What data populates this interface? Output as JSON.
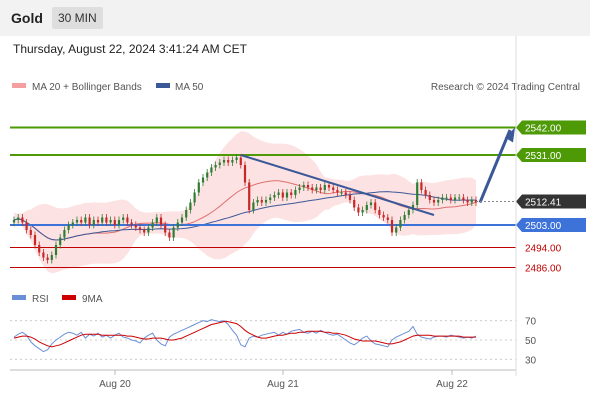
{
  "header": {
    "title": "Gold",
    "timeframe": "30 MIN"
  },
  "timestamp": "Thursday, August 22, 2024 3:41:24 AM CET",
  "legend": {
    "ma20": "MA 20 + Bollinger Bands",
    "ma50": "MA 50",
    "source": "Research © 2024 Trading Central"
  },
  "rsi_legend": {
    "rsi": "RSI",
    "ma9": "9MA"
  },
  "colors": {
    "resistance": "#4e9a06",
    "support": "#3d72d9",
    "target": "#c00000",
    "current": "#333333",
    "ma20": "#e07070",
    "band": "#fbd5d5",
    "ma50": "#3b5998",
    "trend": "#3b5998",
    "up": "#2e7d32",
    "down": "#c62828",
    "rsi": "#6b8fd6",
    "rsi_ma": "#cc0000"
  },
  "chart_data": {
    "type": "candlestick",
    "ylim": [
      2481,
      2553
    ],
    "x_ticks": [
      "Aug 20",
      "Aug 21",
      "Aug 22"
    ],
    "current_price": "2512.41",
    "levels": [
      {
        "label": "2542.00",
        "value": 2542,
        "kind": "resistance"
      },
      {
        "label": "2531.00",
        "value": 2531,
        "kind": "resistance"
      },
      {
        "label": "2503.00",
        "value": 2503,
        "kind": "support"
      },
      {
        "label": "2494.00",
        "value": 2494,
        "kind": "target"
      },
      {
        "label": "2486.00",
        "value": 2486,
        "kind": "target"
      }
    ],
    "close": [
      2505,
      2506,
      2504,
      2501,
      2499,
      2495,
      2492,
      2490,
      2489,
      2491,
      2495,
      2498,
      2501,
      2503,
      2504,
      2505,
      2504,
      2506,
      2503,
      2505,
      2504,
      2506,
      2504,
      2505,
      2503,
      2505,
      2506,
      2504,
      2503,
      2502,
      2501,
      2500,
      2502,
      2504,
      2506,
      2503,
      2500,
      2498,
      2502,
      2504,
      2506,
      2509,
      2512,
      2516,
      2520,
      2522,
      2524,
      2526,
      2527,
      2528,
      2529,
      2528,
      2529,
      2530,
      2527,
      2520,
      2509,
      2512,
      2513,
      2512,
      2513,
      2514,
      2515,
      2516,
      2514,
      2516,
      2515,
      2517,
      2518,
      2519,
      2518,
      2517,
      2518,
      2517,
      2519,
      2518,
      2517,
      2516,
      2516,
      2515,
      2513,
      2510,
      2508,
      2509,
      2511,
      2512,
      2509,
      2507,
      2506,
      2505,
      2500,
      2502,
      2505,
      2507,
      2509,
      2511,
      2520,
      2517,
      2515,
      2513,
      2512,
      2513,
      2514,
      2514,
      2513,
      2514,
      2514,
      2513,
      2512,
      2513,
      2512
    ],
    "rsi": {
      "ticks": [
        70,
        50,
        30
      ],
      "ylim": [
        20,
        80
      ],
      "rsi": [
        53,
        56,
        58,
        55,
        48,
        44,
        41,
        38,
        40,
        46,
        50,
        53,
        56,
        58,
        57,
        55,
        58,
        52,
        56,
        54,
        57,
        53,
        55,
        52,
        55,
        57,
        53,
        52,
        50,
        49,
        47,
        52,
        55,
        57,
        50,
        46,
        44,
        53,
        56,
        58,
        60,
        62,
        64,
        66,
        68,
        70,
        69,
        71,
        70,
        69,
        70,
        66,
        60,
        55,
        45,
        43,
        52,
        54,
        53,
        55,
        56,
        57,
        58,
        55,
        58,
        56,
        59,
        60,
        61,
        58,
        57,
        59,
        57,
        60,
        58,
        56,
        55,
        56,
        53,
        50,
        47,
        45,
        48,
        52,
        54,
        49,
        46,
        45,
        44,
        43,
        50,
        53,
        55,
        57,
        59,
        64,
        56,
        53,
        52,
        51,
        53,
        54,
        54,
        53,
        55,
        54,
        53,
        52,
        53,
        52,
        54
      ],
      "ma": [
        52,
        53,
        54,
        54,
        53,
        51,
        48,
        46,
        44,
        43,
        44,
        45,
        47,
        49,
        51,
        53,
        55,
        56,
        56,
        56,
        56,
        55,
        55,
        55,
        55,
        55,
        55,
        54,
        54,
        53,
        52,
        51,
        51,
        52,
        52,
        52,
        51,
        50,
        50,
        51,
        52,
        54,
        56,
        58,
        60,
        62,
        64,
        66,
        67,
        68,
        69,
        69,
        68,
        67,
        64,
        60,
        57,
        55,
        53,
        52,
        52,
        53,
        54,
        55,
        55,
        56,
        57,
        57,
        58,
        58,
        59,
        59,
        59,
        59,
        58,
        58,
        57,
        57,
        56,
        55,
        53,
        51,
        50,
        49,
        49,
        49,
        49,
        48,
        47,
        46,
        46,
        47,
        48,
        50,
        52,
        54,
        55,
        55,
        55,
        55,
        54,
        54,
        54,
        54,
        54,
        54,
        54,
        53,
        53,
        53,
        53
      ]
    }
  }
}
